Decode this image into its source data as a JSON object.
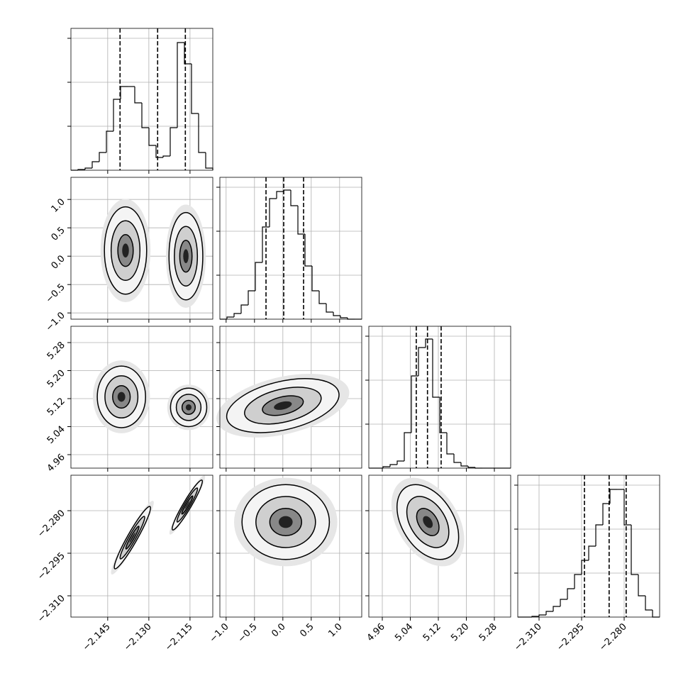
{
  "chart_data": {
    "type": "corner",
    "grid": true,
    "line_color": "#000000",
    "variables": [
      {
        "lim": [
          -2.1584,
          -2.1067
        ],
        "ticks": [
          {
            "value": -2.145,
            "label": "−2.145"
          },
          {
            "value": -2.13,
            "label": "−2.130"
          },
          {
            "value": -2.115,
            "label": "−2.115"
          }
        ],
        "hist": [
          0,
          1,
          3,
          12,
          25,
          55,
          100,
          118,
          118,
          95,
          60,
          35,
          18,
          20,
          60,
          180,
          150,
          80,
          25,
          3
        ],
        "quantiles": [
          -2.1405,
          -2.1268,
          -2.1167
        ]
      },
      {
        "lim": [
          -1.11,
          1.39
        ],
        "ticks": [
          {
            "value": -1,
            "label": "−1.0"
          },
          {
            "value": -0.5,
            "label": "−0.5"
          },
          {
            "value": 0,
            "label": "0.0"
          },
          0.5,
          {
            "value": 1,
            "label": "1.0"
          }
        ],
        "hist": [
          0,
          3,
          8,
          20,
          40,
          80,
          130,
          170,
          180,
          182,
          160,
          120,
          75,
          40,
          22,
          10,
          5,
          2,
          0,
          0
        ],
        "quantiles": [
          -0.297,
          0.015,
          0.365
        ]
      },
      {
        "lim": [
          4.9215,
          5.3266
        ],
        "ticks": [
          4.96,
          5.04,
          5.12,
          {
            "value": 5.2,
            "label": "5.20"
          },
          5.28
        ],
        "hist": [
          0,
          0,
          2,
          5,
          10,
          50,
          130,
          170,
          182,
          100,
          50,
          20,
          8,
          3,
          1,
          0,
          0,
          0,
          0,
          0
        ],
        "quantiles": [
          5.057,
          5.089,
          5.128
        ]
      },
      {
        "lim": [
          -2.3175,
          -2.2675
        ],
        "ticks": [
          {
            "value": -2.31,
            "label": "−2.310"
          },
          {
            "value": -2.295,
            "label": "−2.295"
          },
          {
            "value": -2.28,
            "label": "−2.280"
          }
        ],
        "hist": [
          0,
          0,
          1,
          3,
          8,
          15,
          25,
          40,
          60,
          80,
          100,
          130,
          160,
          180,
          180,
          130,
          60,
          30,
          10,
          0
        ],
        "quantiles": [
          -2.294,
          -2.2853,
          -2.2793
        ]
      }
    ],
    "hist_ylim": [
      0,
      200
    ],
    "hist_yticks": [
      62,
      124,
      186
    ],
    "pairs": [
      [
        [
          {
            "x": -2.1385,
            "y": 0.1,
            "sx": 0.0035,
            "sy": 0.35,
            "rho": 0
          },
          {
            "x": -2.1165,
            "y": 0.0,
            "sx": 0.0028,
            "sy": 0.35,
            "rho": 0
          }
        ]
      ],
      [
        [
          {
            "x": -2.14,
            "y": 5.125,
            "sx": 0.004,
            "sy": 0.04,
            "rho": 0
          },
          {
            "x": -2.1155,
            "y": 5.095,
            "sx": 0.003,
            "sy": 0.025,
            "rho": 0
          }
        ],
        [
          {
            "x": 0.0,
            "y": 5.1,
            "sx": 0.45,
            "sy": 0.035,
            "rho": 0.4
          }
        ]
      ],
      [
        [
          {
            "x": -2.136,
            "y": -2.2895,
            "sx": 0.003,
            "sy": 0.005,
            "rho": 0.95
          },
          {
            "x": -2.116,
            "y": -2.278,
            "sx": 0.0025,
            "sy": 0.004,
            "rho": 0.95
          }
        ],
        [
          {
            "x": 0.05,
            "y": -2.284,
            "sx": 0.35,
            "sy": 0.006,
            "rho": 0
          }
        ],
        [
          {
            "x": 5.09,
            "y": -2.284,
            "sx": 0.04,
            "sy": 0.006,
            "rho": -0.4
          }
        ]
      ]
    ]
  }
}
